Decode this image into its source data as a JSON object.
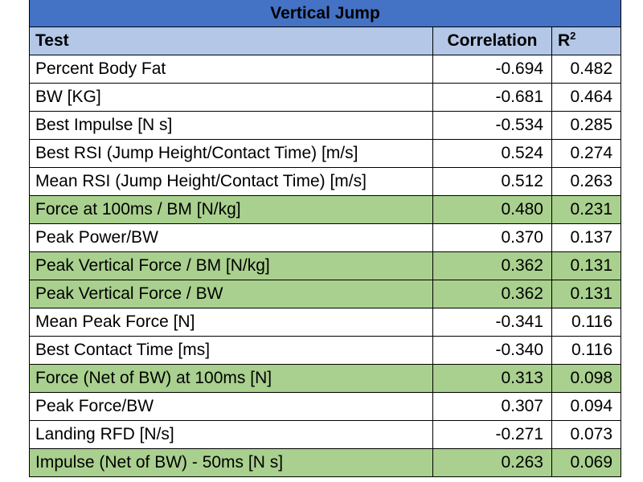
{
  "title": "Vertical Jump",
  "headers": {
    "test": "Test",
    "correlation": "Correlation",
    "r2_base": "R",
    "r2_sup": "2"
  },
  "colors": {
    "title_bg": "#4472c4",
    "header_bg": "#b4c7e7",
    "highlight_bg": "#a9d08e"
  },
  "rows": [
    {
      "test": "Percent Body Fat",
      "correlation": "-0.694",
      "r2": "0.482",
      "highlight": false
    },
    {
      "test": "BW [KG]",
      "correlation": "-0.681",
      "r2": "0.464",
      "highlight": false
    },
    {
      "test": "Best Impulse [N s]",
      "correlation": "-0.534",
      "r2": "0.285",
      "highlight": false
    },
    {
      "test": "Best RSI (Jump Height/Contact Time) [m/s]",
      "correlation": "0.524",
      "r2": "0.274",
      "highlight": false
    },
    {
      "test": "Mean RSI (Jump Height/Contact Time) [m/s]",
      "correlation": "0.512",
      "r2": "0.263",
      "highlight": false
    },
    {
      "test": "Force at 100ms / BM [N/kg]",
      "correlation": "0.480",
      "r2": "0.231",
      "highlight": true
    },
    {
      "test": "Peak Power/BW",
      "correlation": "0.370",
      "r2": "0.137",
      "highlight": false
    },
    {
      "test": "Peak Vertical Force / BM [N/kg]",
      "correlation": "0.362",
      "r2": "0.131",
      "highlight": true
    },
    {
      "test": "Peak Vertical Force / BW",
      "correlation": "0.362",
      "r2": "0.131",
      "highlight": true
    },
    {
      "test": "Mean Peak Force [N]",
      "correlation": "-0.341",
      "r2": "0.116",
      "highlight": false
    },
    {
      "test": "Best Contact Time [ms]",
      "correlation": "-0.340",
      "r2": "0.116",
      "highlight": false
    },
    {
      "test": "Force (Net of BW) at 100ms [N]",
      "correlation": "0.313",
      "r2": "0.098",
      "highlight": true
    },
    {
      "test": "Peak Force/BW",
      "correlation": "0.307",
      "r2": "0.094",
      "highlight": false
    },
    {
      "test": "Landing RFD [N/s]",
      "correlation": "-0.271",
      "r2": "0.073",
      "highlight": false
    },
    {
      "test": "Impulse (Net of BW) - 50ms [N s]",
      "correlation": "0.263",
      "r2": "0.069",
      "highlight": true
    }
  ]
}
